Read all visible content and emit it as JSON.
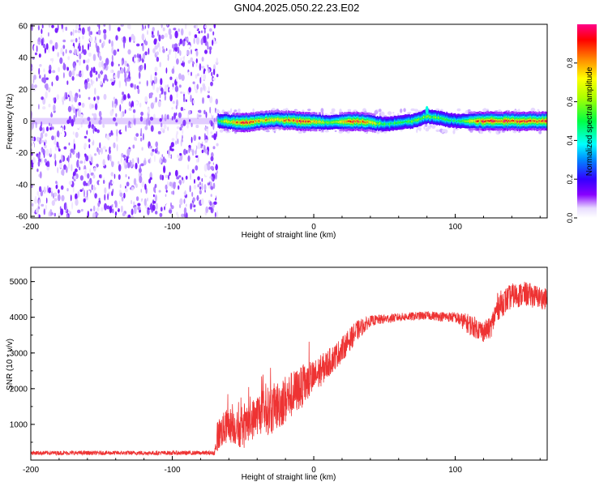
{
  "page": {
    "title": "GN04.2025.050.22.23.E02"
  },
  "chart_data": [
    {
      "type": "heatmap",
      "title": "GN04.2025.050.22.23.E02",
      "xlabel": "Height of straight line (km)",
      "ylabel": "Frequency (Hz)",
      "xlim": [
        -200,
        165
      ],
      "ylim": [
        -61,
        61
      ],
      "xticks": [
        "-200",
        "-100",
        "0",
        "100"
      ],
      "xtick_values": [
        -200,
        -100,
        0,
        100
      ],
      "yticks": [
        "-60",
        "-40",
        "-20",
        "0",
        "20",
        "40",
        "60"
      ],
      "ytick_values": [
        -60,
        -40,
        -20,
        0,
        20,
        40,
        60
      ],
      "noise_region_x": [
        -200,
        -68
      ],
      "noise_level": 0.2,
      "signal_start_x": -68,
      "signal_center_frequency": 0,
      "signal_ridge": [
        {
          "x": -68,
          "f": 0,
          "amp": 0.55
        },
        {
          "x": -50,
          "f": -1,
          "amp": 0.9
        },
        {
          "x": -30,
          "f": 1,
          "amp": 0.75
        },
        {
          "x": -10,
          "f": 0,
          "amp": 0.95
        },
        {
          "x": 10,
          "f": -1,
          "amp": 0.6
        },
        {
          "x": 30,
          "f": 0,
          "amp": 0.95
        },
        {
          "x": 50,
          "f": -2,
          "amp": 0.5
        },
        {
          "x": 70,
          "f": 0,
          "amp": 0.55
        },
        {
          "x": 80,
          "f": 3,
          "amp": 0.6
        },
        {
          "x": 100,
          "f": 0,
          "amp": 0.5
        },
        {
          "x": 120,
          "f": 0,
          "amp": 0.95
        },
        {
          "x": 165,
          "f": 0,
          "amp": 0.9
        }
      ],
      "colorbar": {
        "label": "Normalized spectral amplitude",
        "range": [
          0,
          1
        ],
        "ticks": [
          "0.0",
          "0.2",
          "0.4",
          "0.6",
          "0.8"
        ],
        "tick_values": [
          0.0,
          0.2,
          0.4,
          0.6,
          0.8
        ]
      }
    },
    {
      "type": "line",
      "xlabel": "Height of straight line (km)",
      "ylabel": "SNR (10 * v/v)",
      "xlim": [
        -200,
        165
      ],
      "ylim": [
        0,
        5400
      ],
      "xticks": [
        "-200",
        "-100",
        "0",
        "100"
      ],
      "xtick_values": [
        -200,
        -100,
        0,
        100
      ],
      "yticks": [
        "1000",
        "2000",
        "3000",
        "4000",
        "5000"
      ],
      "ytick_values": [
        1000,
        2000,
        3000,
        4000,
        5000
      ],
      "line_color": "#ee3333",
      "series": [
        {
          "x": [
            -200,
            -150,
            -100,
            -70,
            -68,
            -60,
            -50,
            -40,
            -30,
            -20,
            -10,
            0,
            10,
            20,
            30,
            40,
            60,
            80,
            100,
            110,
            120,
            125,
            130,
            140,
            150,
            165
          ],
          "y": [
            200,
            200,
            200,
            200,
            700,
            1000,
            800,
            1300,
            1400,
            1700,
            2000,
            2300,
            2700,
            3100,
            3600,
            3900,
            4000,
            4050,
            4000,
            3800,
            3600,
            3700,
            4300,
            4600,
            4650,
            4500
          ],
          "noise": [
            60,
            60,
            60,
            60,
            450,
            500,
            500,
            600,
            700,
            700,
            600,
            500,
            400,
            350,
            300,
            150,
            120,
            120,
            150,
            300,
            300,
            300,
            400,
            350,
            350,
            300
          ]
        }
      ]
    }
  ]
}
